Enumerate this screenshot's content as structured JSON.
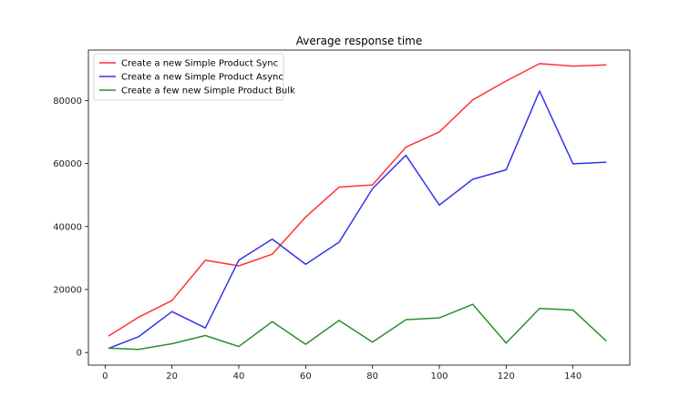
{
  "chart_data": {
    "type": "line",
    "title": "Average response time",
    "xlabel": "",
    "ylabel": "",
    "xlim": [
      -5,
      157
    ],
    "ylim": [
      -4000,
      96000
    ],
    "xticks": [
      0,
      20,
      40,
      60,
      80,
      100,
      120,
      140
    ],
    "yticks": [
      0,
      20000,
      40000,
      60000,
      80000
    ],
    "grid": false,
    "legend_position": "top-left",
    "x": [
      1,
      10,
      20,
      30,
      40,
      50,
      60,
      70,
      80,
      90,
      100,
      110,
      120,
      130,
      140,
      150
    ],
    "series": [
      {
        "name": "Create a new Simple Product Sync",
        "color": "#ff3333",
        "values": [
          5200,
          11200,
          16500,
          29300,
          27500,
          31200,
          43000,
          52500,
          53200,
          65200,
          70000,
          80200,
          86200,
          91700,
          90900,
          91300
        ]
      },
      {
        "name": "Create a new Simple Product Async",
        "color": "#3333ee",
        "values": [
          1300,
          5000,
          13000,
          7800,
          29300,
          36000,
          28000,
          35000,
          52000,
          62600,
          46800,
          55000,
          58000,
          83000,
          59900,
          60400
        ]
      },
      {
        "name": "Create a few new Simple Product Bulk",
        "color": "#2a8f2a",
        "values": [
          1400,
          1000,
          2800,
          5400,
          1900,
          9800,
          2600,
          10200,
          3300,
          10400,
          11000,
          15300,
          3000,
          14000,
          13500,
          3600
        ]
      }
    ]
  }
}
